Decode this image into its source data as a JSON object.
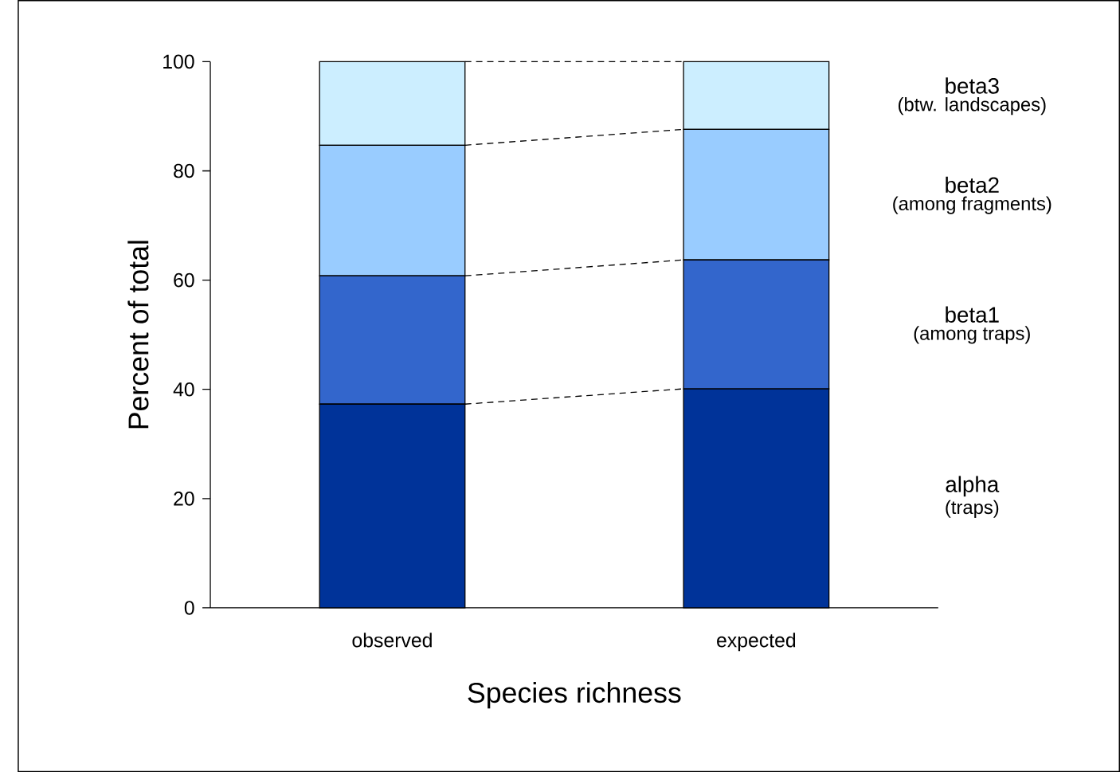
{
  "chart_data": {
    "type": "bar",
    "stacked": true,
    "legend": false,
    "grid": false,
    "xlabel": "Species richness",
    "ylabel": "Percent of total",
    "categories": [
      "observed",
      "expected"
    ],
    "series": [
      {
        "name": "alpha",
        "color": "#003399",
        "values": [
          37.3,
          40.1
        ]
      },
      {
        "name": "beta1",
        "color": "#3366cc",
        "values": [
          23.5,
          23.6
        ]
      },
      {
        "name": "beta2",
        "color": "#99ccff",
        "values": [
          23.9,
          23.9
        ]
      },
      {
        "name": "beta3",
        "color": "#cceeff",
        "values": [
          15.3,
          12.4
        ]
      }
    ],
    "annotations": [
      "(traps)",
      "(among traps)",
      "(among fragments)",
      "(btw. landscapes)"
    ],
    "ylim": [
      0,
      100
    ],
    "yticks": [
      0,
      20,
      40,
      60,
      80,
      100
    ]
  }
}
